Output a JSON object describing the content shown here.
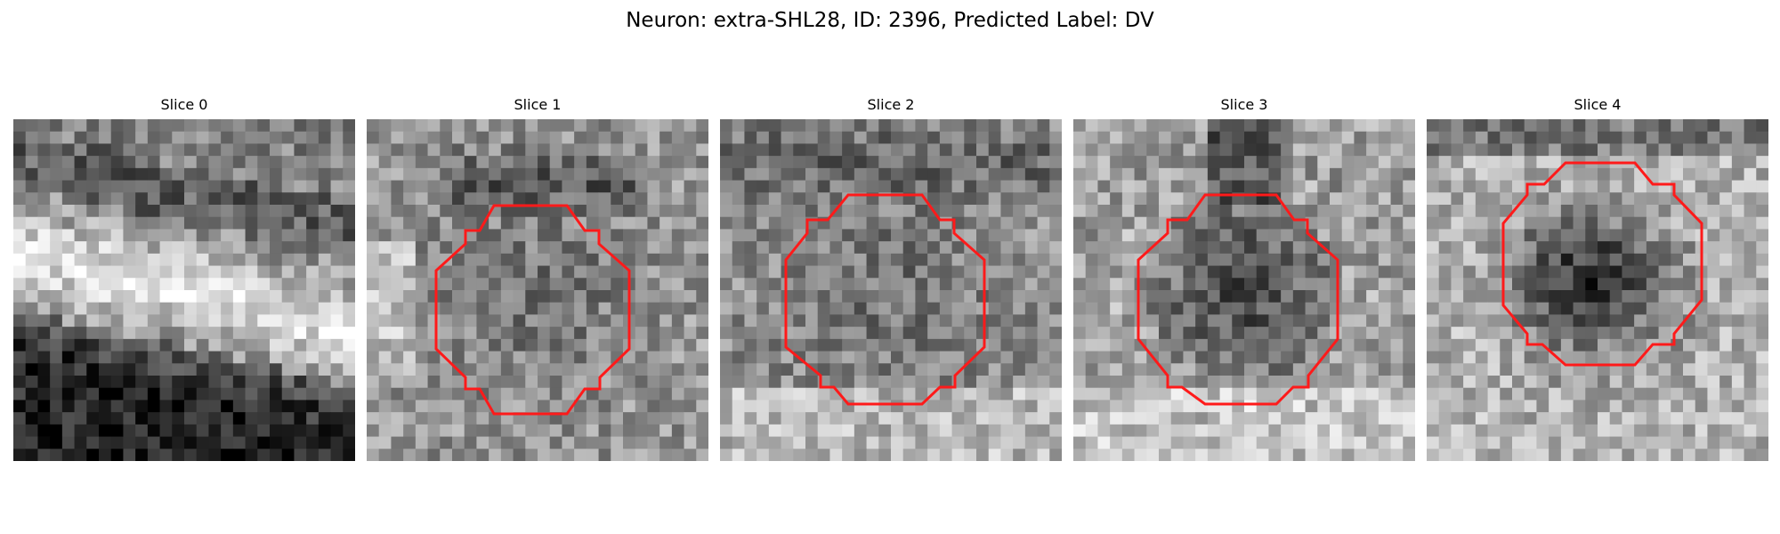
{
  "figure": {
    "title": "Neuron: extra-SHL28, ID: 2396, Predicted Label: DV"
  },
  "contour_color": "#ff1a1a",
  "panels": [
    {
      "title": "Slice 0",
      "has_contour": false,
      "seed": 11
    },
    {
      "title": "Slice 1",
      "has_contour": true,
      "seed": 23
    },
    {
      "title": "Slice 2",
      "has_contour": true,
      "seed": 37
    },
    {
      "title": "Slice 3",
      "has_contour": true,
      "seed": 51
    },
    {
      "title": "Slice 4",
      "has_contour": true,
      "seed": 67
    }
  ]
}
